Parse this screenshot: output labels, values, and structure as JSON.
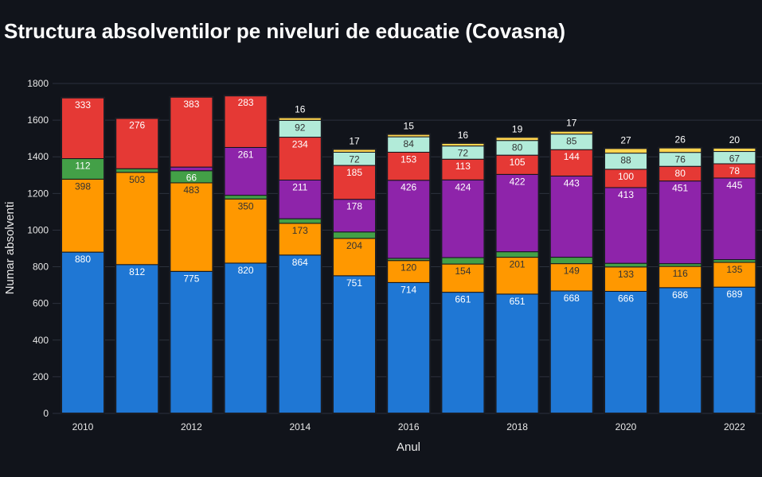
{
  "chart_data": {
    "type": "bar",
    "stacked": true,
    "title": "Structura absolventilor pe niveluri de educatie (Covasna)",
    "xlabel": "Anul",
    "ylabel": "Numar absolventi",
    "ylim": [
      0,
      1800
    ],
    "yticks": [
      0,
      200,
      400,
      600,
      800,
      1000,
      1200,
      1400,
      1600,
      1800
    ],
    "xtick_labels": [
      "2010",
      "2012",
      "2014",
      "2016",
      "2018",
      "2020",
      "2022"
    ],
    "grid": true,
    "categories": [
      "2010",
      "2011",
      "2012",
      "2013",
      "2014",
      "2015",
      "2016",
      "2017",
      "2018",
      "2019",
      "2020",
      "2021",
      "2022"
    ],
    "series": [
      {
        "color": "#1f77d4",
        "label_color": "#ffffff",
        "values": [
          880,
          812,
          775,
          820,
          864,
          751,
          714,
          661,
          651,
          668,
          666,
          686,
          689
        ]
      },
      {
        "color": "#ff9800",
        "label_color": "#333333",
        "values": [
          398,
          503,
          483,
          350,
          173,
          204,
          120,
          154,
          201,
          149,
          133,
          116,
          135
        ]
      },
      {
        "color": "#43a047",
        "label_color": "#ffffff",
        "values": [
          112,
          20,
          66,
          20,
          25,
          35,
          12,
          35,
          30,
          35,
          20,
          15,
          15
        ]
      },
      {
        "color": "#8e24aa",
        "label_color": "#ffffff",
        "values": [
          0,
          0,
          20,
          261,
          211,
          178,
          426,
          424,
          422,
          443,
          413,
          451,
          445
        ]
      },
      {
        "color": "#e53935",
        "label_color": "#ffffff",
        "values": [
          333,
          276,
          383,
          283,
          234,
          185,
          153,
          113,
          105,
          144,
          100,
          80,
          78
        ]
      },
      {
        "color": "#b2ebd9",
        "label_color": "#333333",
        "values": [
          0,
          0,
          0,
          0,
          92,
          72,
          84,
          72,
          80,
          85,
          88,
          76,
          67
        ]
      },
      {
        "color": "#ffd54f",
        "label_color": "#333333",
        "values": [
          0,
          0,
          0,
          0,
          16,
          17,
          15,
          16,
          19,
          17,
          27,
          26,
          20
        ]
      }
    ],
    "segment_labels": [
      [
        "880",
        "398",
        "112",
        "",
        "333",
        "",
        ""
      ],
      [
        "812",
        "503",
        "",
        "",
        "276",
        "",
        ""
      ],
      [
        "775",
        "483",
        "66",
        "",
        "383",
        "",
        ""
      ],
      [
        "820",
        "350",
        "",
        "261",
        "283",
        "",
        ""
      ],
      [
        "864",
        "173",
        "",
        "211",
        "234",
        "92",
        ""
      ],
      [
        "751",
        "204",
        "",
        "178",
        "185",
        "72",
        ""
      ],
      [
        "714",
        "120",
        "",
        "426",
        "153",
        "84",
        ""
      ],
      [
        "661",
        "154",
        "",
        "424",
        "113",
        "72",
        ""
      ],
      [
        "651",
        "201",
        "",
        "422",
        "105",
        "80",
        ""
      ],
      [
        "668",
        "149",
        "",
        "443",
        "144",
        "85",
        ""
      ],
      [
        "666",
        "133",
        "",
        "413",
        "100",
        "88",
        ""
      ],
      [
        "686",
        "116",
        "",
        "451",
        "80",
        "76",
        ""
      ],
      [
        "689",
        "135",
        "",
        "445",
        "78",
        "67",
        ""
      ]
    ],
    "top_labels": [
      "",
      "",
      "",
      "",
      "16",
      "17",
      "15",
      "16",
      "19",
      "17",
      "27",
      "26",
      "20"
    ]
  }
}
